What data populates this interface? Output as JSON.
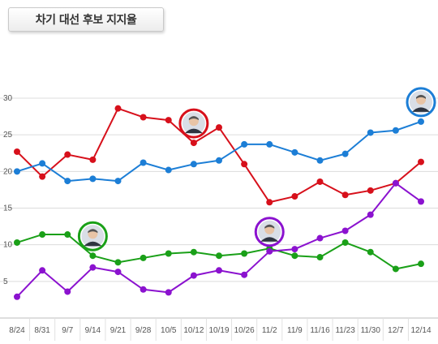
{
  "header": {
    "title": "차기 대선 후보 지지율"
  },
  "chart_data": {
    "type": "line",
    "title": "차기 대선 후보 지지율",
    "xlabel": "",
    "ylabel": "",
    "ylim": [
      0,
      32
    ],
    "yticks": [
      5,
      10,
      15,
      20,
      25,
      30
    ],
    "grid": true,
    "categories": [
      "8/24",
      "8/31",
      "9/7",
      "9/14",
      "9/21",
      "9/28",
      "10/5",
      "10/12",
      "10/19",
      "10/26",
      "11/2",
      "11/9",
      "11/16",
      "11/23",
      "11/30",
      "12/7",
      "12/14"
    ],
    "series": [
      {
        "color": "#d7101b",
        "avatar": "portrait-man-glasses-icon",
        "avatar_index": 7,
        "values": [
          22.7,
          19.3,
          22.3,
          21.6,
          28.6,
          27.4,
          27.0,
          23.9,
          26.0,
          21.0,
          15.8,
          16.6,
          18.6,
          16.8,
          17.4,
          18.4,
          21.3
        ]
      },
      {
        "color": "#1c7ed6",
        "avatar": "portrait-man-gray-hair-icon",
        "avatar_index": 16,
        "values": [
          20.0,
          21.1,
          18.7,
          19.0,
          18.7,
          21.2,
          20.2,
          21.0,
          21.5,
          23.7,
          23.7,
          22.6,
          21.5,
          22.4,
          25.3,
          25.6,
          26.8
        ]
      },
      {
        "color": "#1aa018",
        "avatar": "portrait-man-smiling-icon",
        "avatar_index": 3,
        "values": [
          10.3,
          11.4,
          11.4,
          8.5,
          7.6,
          8.2,
          8.8,
          9.0,
          8.5,
          8.8,
          9.5,
          8.5,
          8.3,
          10.3,
          9.0,
          6.7,
          7.4
        ]
      },
      {
        "color": "#8b12cf",
        "avatar": "portrait-man-glasses-suit-icon",
        "avatar_index": 10,
        "values": [
          2.9,
          6.5,
          3.6,
          6.9,
          6.3,
          3.9,
          3.5,
          5.8,
          6.5,
          5.9,
          9.1,
          9.4,
          10.9,
          11.9,
          14.1,
          18.4,
          15.9
        ]
      }
    ]
  }
}
